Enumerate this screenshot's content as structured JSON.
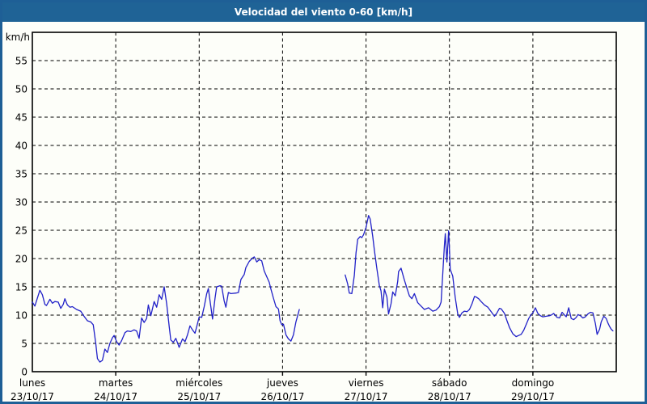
{
  "window": {
    "title": "Velocidad del viento 0-60 [km/h]"
  },
  "colors": {
    "frame": "#1E5F96",
    "titlebar_bg": "#1F6396",
    "titlebar_text": "#FFFFFF",
    "chart_bg": "#FDFEF9",
    "plot_border": "#000000",
    "grid": "#000000",
    "series": "#2121C8",
    "label_text": "#000000"
  },
  "chart_data": {
    "type": "line",
    "title": "Velocidad del viento 0-60 [km/h]",
    "unit_label": "km/h",
    "ylim": [
      0,
      60
    ],
    "y_tick_step": 5,
    "y_ticks": [
      0,
      5,
      10,
      15,
      20,
      25,
      30,
      35,
      40,
      45,
      50,
      55
    ],
    "grid": "dashed",
    "legend": "none",
    "x_categories": [
      {
        "day": "lunes",
        "date": "23/10/17"
      },
      {
        "day": "martes",
        "date": "24/10/17"
      },
      {
        "day": "miércoles",
        "date": "25/10/17"
      },
      {
        "day": "jueves",
        "date": "26/10/17"
      },
      {
        "day": "viernes",
        "date": "27/10/17"
      },
      {
        "day": "sábado",
        "date": "28/10/17"
      },
      {
        "day": "domingo",
        "date": "29/10/17"
      }
    ],
    "x_unit": "days_since_monday_00h",
    "series": [
      {
        "name": "velocidad-viento",
        "color": "#2121C8",
        "segments": [
          [
            [
              0.0,
              12.3
            ],
            [
              0.03,
              11.6
            ],
            [
              0.06,
              13.0
            ],
            [
              0.09,
              14.4
            ],
            [
              0.12,
              13.6
            ],
            [
              0.15,
              11.9
            ],
            [
              0.17,
              11.7
            ],
            [
              0.21,
              12.8
            ],
            [
              0.24,
              12.1
            ],
            [
              0.27,
              12.4
            ],
            [
              0.31,
              12.3
            ],
            [
              0.34,
              11.2
            ],
            [
              0.37,
              11.9
            ],
            [
              0.39,
              12.9
            ],
            [
              0.42,
              11.8
            ],
            [
              0.45,
              11.4
            ],
            [
              0.48,
              11.5
            ],
            [
              0.53,
              11.0
            ],
            [
              0.58,
              10.7
            ],
            [
              0.62,
              9.8
            ],
            [
              0.66,
              9.0
            ],
            [
              0.7,
              8.8
            ],
            [
              0.73,
              8.3
            ],
            [
              0.76,
              5.0
            ],
            [
              0.78,
              2.3
            ],
            [
              0.81,
              1.7
            ],
            [
              0.84,
              2.0
            ],
            [
              0.87,
              4.0
            ],
            [
              0.9,
              3.4
            ],
            [
              0.93,
              5.0
            ],
            [
              0.96,
              6.0
            ],
            [
              0.98,
              6.4
            ],
            [
              1.01,
              5.3
            ],
            [
              1.04,
              4.7
            ],
            [
              1.07,
              5.5
            ],
            [
              1.11,
              6.9
            ],
            [
              1.14,
              7.2
            ],
            [
              1.18,
              7.1
            ],
            [
              1.22,
              7.4
            ],
            [
              1.25,
              7.2
            ],
            [
              1.28,
              5.9
            ],
            [
              1.31,
              9.5
            ],
            [
              1.34,
              8.7
            ],
            [
              1.37,
              9.4
            ],
            [
              1.39,
              11.8
            ],
            [
              1.42,
              9.9
            ],
            [
              1.46,
              12.4
            ],
            [
              1.49,
              11.4
            ],
            [
              1.52,
              13.6
            ],
            [
              1.55,
              12.8
            ],
            [
              1.58,
              15.0
            ],
            [
              1.61,
              12.0
            ],
            [
              1.64,
              8.0
            ],
            [
              1.66,
              5.6
            ],
            [
              1.69,
              5.2
            ],
            [
              1.72,
              5.9
            ],
            [
              1.76,
              4.3
            ],
            [
              1.8,
              5.8
            ],
            [
              1.83,
              5.3
            ],
            [
              1.86,
              6.5
            ],
            [
              1.89,
              8.1
            ],
            [
              1.92,
              7.4
            ],
            [
              1.95,
              6.8
            ],
            [
              1.98,
              8.5
            ],
            [
              2.0,
              9.7
            ],
            [
              2.03,
              9.6
            ],
            [
              2.06,
              11.5
            ],
            [
              2.09,
              13.8
            ],
            [
              2.11,
              14.7
            ],
            [
              2.14,
              11.5
            ],
            [
              2.16,
              9.3
            ],
            [
              2.19,
              13.0
            ],
            [
              2.21,
              15.0
            ],
            [
              2.25,
              15.2
            ],
            [
              2.27,
              15.1
            ],
            [
              2.3,
              12.5
            ],
            [
              2.32,
              11.4
            ],
            [
              2.35,
              14.0
            ],
            [
              2.38,
              13.8
            ],
            [
              2.44,
              13.9
            ],
            [
              2.47,
              14.0
            ],
            [
              2.5,
              16.3
            ],
            [
              2.54,
              17.2
            ],
            [
              2.56,
              18.4
            ],
            [
              2.6,
              19.5
            ],
            [
              2.64,
              20.1
            ],
            [
              2.66,
              20.3
            ],
            [
              2.69,
              19.4
            ],
            [
              2.72,
              19.8
            ],
            [
              2.75,
              19.6
            ],
            [
              2.78,
              17.8
            ],
            [
              2.81,
              16.8
            ],
            [
              2.84,
              15.8
            ],
            [
              2.86,
              14.6
            ],
            [
              2.89,
              13.0
            ],
            [
              2.92,
              11.5
            ],
            [
              2.95,
              11.1
            ],
            [
              2.97,
              9.0
            ],
            [
              2.99,
              8.3
            ],
            [
              3.01,
              8.4
            ],
            [
              3.04,
              6.5
            ],
            [
              3.07,
              5.8
            ],
            [
              3.1,
              5.4
            ],
            [
              3.13,
              6.5
            ],
            [
              3.16,
              8.8
            ],
            [
              3.19,
              10.4
            ],
            [
              3.2,
              11.0
            ]
          ],
          [
            [
              3.75,
              17.1
            ],
            [
              3.78,
              15.5
            ],
            [
              3.8,
              13.9
            ],
            [
              3.83,
              13.8
            ],
            [
              3.86,
              17.0
            ],
            [
              3.88,
              21.0
            ],
            [
              3.9,
              23.4
            ],
            [
              3.93,
              23.9
            ],
            [
              3.95,
              23.7
            ],
            [
              3.97,
              24.2
            ],
            [
              4.0,
              25.5
            ],
            [
              4.03,
              27.6
            ],
            [
              4.05,
              27.0
            ],
            [
              4.08,
              24.0
            ],
            [
              4.1,
              21.5
            ],
            [
              4.13,
              18.2
            ],
            [
              4.16,
              15.2
            ],
            [
              4.18,
              14.3
            ],
            [
              4.2,
              11.3
            ],
            [
              4.22,
              14.6
            ],
            [
              4.25,
              13.2
            ],
            [
              4.27,
              10.2
            ],
            [
              4.3,
              12.0
            ],
            [
              4.32,
              14.1
            ],
            [
              4.35,
              13.4
            ],
            [
              4.38,
              16.0
            ],
            [
              4.39,
              17.7
            ],
            [
              4.42,
              18.3
            ],
            [
              4.46,
              16.2
            ],
            [
              4.49,
              14.8
            ],
            [
              4.52,
              13.4
            ],
            [
              4.55,
              12.9
            ],
            [
              4.58,
              13.8
            ],
            [
              4.62,
              12.2
            ],
            [
              4.66,
              11.6
            ],
            [
              4.7,
              11.0
            ],
            [
              4.75,
              11.3
            ],
            [
              4.8,
              10.7
            ],
            [
              4.84,
              10.9
            ],
            [
              4.88,
              11.5
            ],
            [
              4.9,
              12.3
            ],
            [
              4.92,
              17.4
            ],
            [
              4.94,
              22.3
            ],
            [
              4.95,
              24.4
            ],
            [
              4.97,
              19.4
            ],
            [
              4.99,
              24.9
            ],
            [
              5.0,
              21.8
            ],
            [
              5.01,
              18.1
            ],
            [
              5.04,
              16.9
            ],
            [
              5.07,
              13.1
            ],
            [
              5.1,
              10.2
            ],
            [
              5.12,
              9.6
            ],
            [
              5.15,
              10.4
            ],
            [
              5.18,
              10.7
            ],
            [
              5.21,
              10.6
            ],
            [
              5.24,
              11.0
            ],
            [
              5.27,
              12.0
            ],
            [
              5.3,
              13.3
            ],
            [
              5.32,
              13.2
            ],
            [
              5.35,
              12.9
            ],
            [
              5.38,
              12.4
            ],
            [
              5.42,
              11.8
            ],
            [
              5.46,
              11.4
            ],
            [
              5.5,
              10.6
            ],
            [
              5.54,
              9.8
            ],
            [
              5.57,
              10.4
            ],
            [
              5.6,
              11.2
            ],
            [
              5.62,
              11.1
            ],
            [
              5.66,
              10.3
            ],
            [
              5.69,
              9.0
            ],
            [
              5.72,
              7.8
            ],
            [
              5.76,
              6.7
            ],
            [
              5.8,
              6.2
            ],
            [
              5.83,
              6.4
            ],
            [
              5.86,
              6.6
            ],
            [
              5.89,
              7.3
            ],
            [
              5.91,
              8.0
            ],
            [
              5.95,
              9.4
            ],
            [
              5.98,
              10.1
            ],
            [
              6.0,
              10.4
            ],
            [
              6.03,
              11.3
            ],
            [
              6.06,
              10.3
            ],
            [
              6.09,
              9.9
            ],
            [
              6.12,
              9.7
            ],
            [
              6.16,
              9.8
            ],
            [
              6.2,
              9.9
            ],
            [
              6.22,
              10.0
            ],
            [
              6.25,
              10.3
            ],
            [
              6.29,
              9.6
            ],
            [
              6.32,
              9.5
            ],
            [
              6.35,
              10.5
            ],
            [
              6.38,
              10.0
            ],
            [
              6.4,
              9.7
            ],
            [
              6.43,
              11.3
            ],
            [
              6.46,
              9.4
            ],
            [
              6.49,
              9.2
            ],
            [
              6.52,
              9.6
            ],
            [
              6.54,
              10.1
            ],
            [
              6.57,
              9.9
            ],
            [
              6.6,
              9.5
            ],
            [
              6.63,
              9.7
            ],
            [
              6.66,
              10.2
            ],
            [
              6.69,
              10.5
            ],
            [
              6.72,
              10.4
            ],
            [
              6.75,
              8.5
            ],
            [
              6.77,
              6.6
            ],
            [
              6.8,
              7.5
            ],
            [
              6.82,
              8.8
            ],
            [
              6.85,
              9.8
            ],
            [
              6.88,
              9.4
            ],
            [
              6.9,
              8.6
            ],
            [
              6.92,
              8.0
            ],
            [
              6.94,
              7.5
            ],
            [
              6.96,
              7.2
            ]
          ]
        ]
      }
    ]
  }
}
